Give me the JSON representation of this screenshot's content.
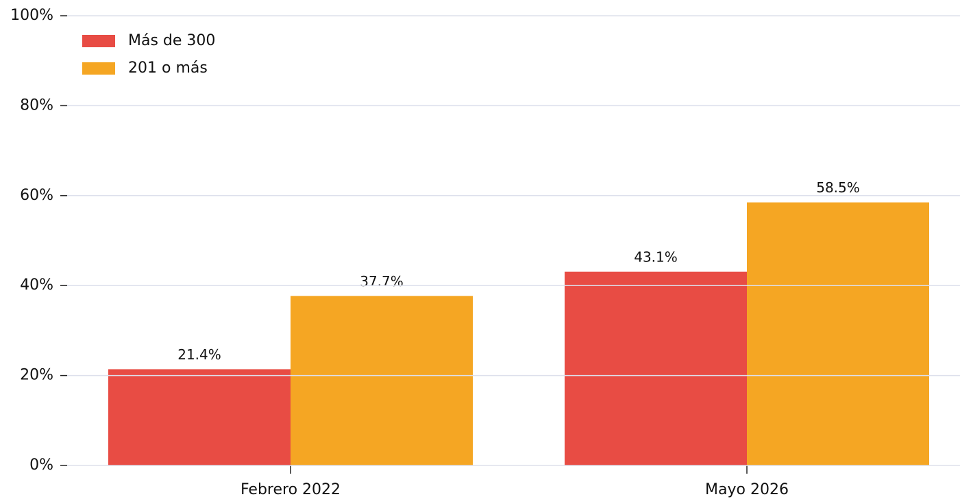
{
  "chart_data": {
    "type": "bar",
    "categories": [
      "Febrero 2022",
      "Mayo 2026"
    ],
    "series": [
      {
        "name": "Más de 300",
        "color": "#e84c44",
        "values": [
          21.4,
          43.1
        ],
        "value_labels": [
          "21.4%",
          "43.1%"
        ]
      },
      {
        "name": "201 o más",
        "color": "#f5a623",
        "values": [
          37.7,
          58.5
        ],
        "value_labels": [
          "37.7%",
          "58.5%"
        ]
      }
    ],
    "ylim": [
      0,
      100
    ],
    "yticks": [
      {
        "value": 0,
        "label": "0%"
      },
      {
        "value": 20,
        "label": "20%"
      },
      {
        "value": 40,
        "label": "40%"
      },
      {
        "value": 60,
        "label": "60%"
      },
      {
        "value": 80,
        "label": "80%"
      },
      {
        "value": 100,
        "label": "100%"
      }
    ],
    "grid": true,
    "legend": "upper left"
  }
}
